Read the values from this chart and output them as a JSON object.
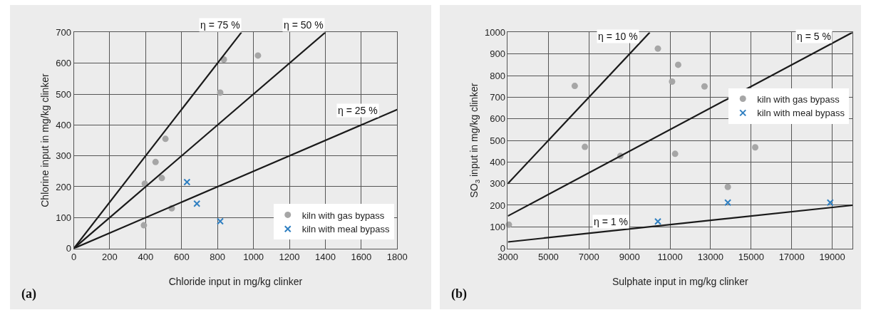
{
  "chart_data": [
    {
      "type": "scatter",
      "xlabel": "Chloride input in mg/kg clinker",
      "ylabel": "Chlorine input in mg/kg clinker",
      "annotations": [
        "(a)",
        {
          "text": "η = 75 %",
          "x": 933,
          "y": 700
        },
        {
          "text": "η = 50 %",
          "x": 1400,
          "y": 700
        },
        {
          "text": "η = 25 %",
          "x": 1700,
          "y": 425
        }
      ],
      "xlim": [
        0,
        1800
      ],
      "ylim": [
        0,
        700
      ],
      "xticks": [
        0,
        200,
        400,
        600,
        800,
        1000,
        1200,
        1400,
        1600,
        1800
      ],
      "yticks": [
        0,
        100,
        200,
        300,
        400,
        500,
        600,
        700
      ],
      "grid": true,
      "legend": "bottom right",
      "series": [
        {
          "name": "kiln with gas bypass",
          "color": "#a6a6a6",
          "marker": "circle",
          "x": [
            390,
            395,
            455,
            490,
            510,
            545,
            815,
            835,
            1025
          ],
          "values": [
            75,
            210,
            280,
            228,
            355,
            130,
            505,
            612,
            625
          ]
        },
        {
          "name": "kiln with meal bypass",
          "color": "#2f7fc1",
          "marker": "cross",
          "x": [
            630,
            685,
            815
          ],
          "values": [
            215,
            145,
            88
          ]
        },
        {
          "type": "line",
          "color": "#1a1a1a",
          "x": [
            0,
            933
          ],
          "values": [
            0,
            700
          ]
        },
        {
          "type": "line",
          "color": "#1a1a1a",
          "x": [
            0,
            1400
          ],
          "values": [
            0,
            700
          ]
        },
        {
          "type": "line",
          "color": "#1a1a1a",
          "x": [
            0,
            1800
          ],
          "values": [
            0,
            450
          ]
        }
      ]
    },
    {
      "type": "scatter",
      "xlabel": "Sulphate input in mg/kg clinker",
      "ylabel": "SO$_{3}$ input in mg/kg clinker",
      "annotations": [
        "(b)",
        {
          "text": "η = 10 %",
          "x": 9500,
          "y": 950
        },
        {
          "text": "η = 5 %",
          "x": 19000,
          "y": 950
        },
        {
          "text": "η = 1 %",
          "x": 9000,
          "y": 90
        }
      ],
      "xlim": [
        3000,
        20000
      ],
      "ylim": [
        0,
        1000
      ],
      "xticks": [
        3000,
        5000,
        7000,
        9000,
        11000,
        13000,
        15000,
        17000,
        19000
      ],
      "yticks": [
        0,
        100,
        200,
        300,
        400,
        500,
        600,
        700,
        800,
        900,
        1000
      ],
      "grid": true,
      "legend": "right",
      "series": [
        {
          "name": "kiln with gas bypass",
          "color": "#a6a6a6",
          "marker": "circle",
          "x": [
            3050,
            6300,
            6800,
            8550,
            10400,
            11100,
            11250,
            11400,
            12700,
            13850,
            15200
          ],
          "values": [
            110,
            752,
            470,
            428,
            925,
            772,
            438,
            850,
            750,
            285,
            468
          ]
        },
        {
          "name": "kiln with meal bypass",
          "color": "#2f7fc1",
          "marker": "cross",
          "x": [
            10400,
            13850,
            18900
          ],
          "values": [
            125,
            212,
            212
          ]
        },
        {
          "type": "line",
          "color": "#1a1a1a",
          "x": [
            3000,
            10000
          ],
          "values": [
            300,
            1000
          ]
        },
        {
          "type": "line",
          "color": "#1a1a1a",
          "x": [
            3000,
            20000
          ],
          "values": [
            150,
            1000
          ]
        },
        {
          "type": "line",
          "color": "#1a1a1a",
          "x": [
            3000,
            20000
          ],
          "values": [
            30,
            200
          ]
        }
      ]
    }
  ]
}
